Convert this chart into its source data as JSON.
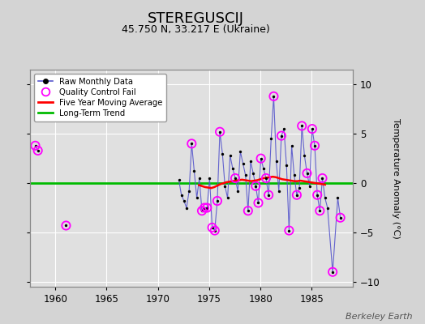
{
  "title": "STEREGUSCIJ",
  "subtitle": "45.750 N, 33.217 E (Ukraine)",
  "ylabel": "Temperature Anomaly (°C)",
  "watermark": "Berkeley Earth",
  "xlim": [
    1957.5,
    1989.0
  ],
  "ylim": [
    -10.5,
    11.5
  ],
  "yticks": [
    -10,
    -5,
    0,
    5,
    10
  ],
  "xticks": [
    1960,
    1965,
    1970,
    1975,
    1980,
    1985
  ],
  "bg_color": "#d4d4d4",
  "plot_bg_color": "#e0e0e0",
  "grid_color": "#ffffff",
  "raw_line_color": "#5555cc",
  "raw_dot_color": "#000000",
  "qc_fail_color": "#ff00ff",
  "moving_avg_color": "#ff0000",
  "trend_color": "#00bb00",
  "raw_monthly_data": [
    [
      1958.04,
      3.8
    ],
    [
      1958.29,
      3.3
    ],
    [
      1961.04,
      -4.3
    ],
    [
      1972.04,
      0.3
    ],
    [
      1972.29,
      -1.2
    ],
    [
      1972.54,
      -1.8
    ],
    [
      1972.79,
      -2.5
    ],
    [
      1973.04,
      -0.8
    ],
    [
      1973.29,
      4.0
    ],
    [
      1973.54,
      1.2
    ],
    [
      1973.79,
      -1.5
    ],
    [
      1974.04,
      0.5
    ],
    [
      1974.29,
      -2.8
    ],
    [
      1974.54,
      -2.5
    ],
    [
      1974.79,
      -2.5
    ],
    [
      1975.04,
      0.5
    ],
    [
      1975.29,
      -4.5
    ],
    [
      1975.54,
      -4.8
    ],
    [
      1975.79,
      -1.8
    ],
    [
      1976.04,
      5.2
    ],
    [
      1976.29,
      3.0
    ],
    [
      1976.54,
      -0.3
    ],
    [
      1976.79,
      -1.5
    ],
    [
      1977.04,
      2.8
    ],
    [
      1977.29,
      1.5
    ],
    [
      1977.54,
      0.5
    ],
    [
      1977.79,
      -0.8
    ],
    [
      1978.04,
      3.2
    ],
    [
      1978.29,
      2.0
    ],
    [
      1978.54,
      0.8
    ],
    [
      1978.79,
      -2.8
    ],
    [
      1979.04,
      2.2
    ],
    [
      1979.29,
      1.0
    ],
    [
      1979.54,
      -0.3
    ],
    [
      1979.79,
      -2.0
    ],
    [
      1980.04,
      2.5
    ],
    [
      1980.29,
      1.5
    ],
    [
      1980.54,
      0.5
    ],
    [
      1980.79,
      -1.2
    ],
    [
      1981.04,
      4.5
    ],
    [
      1981.29,
      8.8
    ],
    [
      1981.54,
      2.2
    ],
    [
      1981.79,
      -0.8
    ],
    [
      1982.04,
      4.8
    ],
    [
      1982.29,
      5.5
    ],
    [
      1982.54,
      1.8
    ],
    [
      1982.79,
      -4.8
    ],
    [
      1983.04,
      3.8
    ],
    [
      1983.29,
      0.8
    ],
    [
      1983.54,
      -1.2
    ],
    [
      1983.79,
      -0.5
    ],
    [
      1984.04,
      5.8
    ],
    [
      1984.29,
      2.8
    ],
    [
      1984.54,
      1.0
    ],
    [
      1984.79,
      -0.3
    ],
    [
      1985.04,
      5.5
    ],
    [
      1985.29,
      3.8
    ],
    [
      1985.54,
      -1.2
    ],
    [
      1985.79,
      -2.8
    ],
    [
      1986.04,
      0.5
    ],
    [
      1986.29,
      -1.5
    ],
    [
      1986.54,
      -2.5
    ],
    [
      1987.04,
      -9.0
    ],
    [
      1987.54,
      -1.5
    ],
    [
      1987.79,
      -3.5
    ]
  ],
  "qc_fail_points": [
    [
      1958.04,
      3.8
    ],
    [
      1958.29,
      3.3
    ],
    [
      1961.04,
      -4.3
    ],
    [
      1973.29,
      4.0
    ],
    [
      1974.29,
      -2.8
    ],
    [
      1974.54,
      -2.5
    ],
    [
      1974.79,
      -2.5
    ],
    [
      1975.29,
      -4.5
    ],
    [
      1975.54,
      -4.8
    ],
    [
      1975.79,
      -1.8
    ],
    [
      1976.04,
      5.2
    ],
    [
      1977.54,
      0.5
    ],
    [
      1978.79,
      -2.8
    ],
    [
      1979.54,
      -0.3
    ],
    [
      1979.79,
      -2.0
    ],
    [
      1980.04,
      2.5
    ],
    [
      1980.54,
      0.5
    ],
    [
      1980.79,
      -1.2
    ],
    [
      1981.29,
      8.8
    ],
    [
      1982.04,
      4.8
    ],
    [
      1982.79,
      -4.8
    ],
    [
      1983.54,
      -1.2
    ],
    [
      1984.04,
      5.8
    ],
    [
      1984.54,
      1.0
    ],
    [
      1985.04,
      5.5
    ],
    [
      1985.29,
      3.8
    ],
    [
      1985.54,
      -1.2
    ],
    [
      1985.79,
      -2.8
    ],
    [
      1986.04,
      0.5
    ],
    [
      1987.04,
      -9.0
    ],
    [
      1987.79,
      -3.5
    ]
  ],
  "moving_avg": [
    [
      1974.0,
      -0.2
    ],
    [
      1974.3,
      -0.3
    ],
    [
      1974.6,
      -0.4
    ],
    [
      1974.9,
      -0.45
    ],
    [
      1975.2,
      -0.5
    ],
    [
      1975.5,
      -0.4
    ],
    [
      1975.8,
      -0.25
    ],
    [
      1976.1,
      -0.1
    ],
    [
      1976.4,
      0.0
    ],
    [
      1976.7,
      0.1
    ],
    [
      1977.0,
      0.15
    ],
    [
      1977.3,
      0.2
    ],
    [
      1977.6,
      0.25
    ],
    [
      1977.9,
      0.3
    ],
    [
      1978.2,
      0.35
    ],
    [
      1978.5,
      0.3
    ],
    [
      1978.8,
      0.25
    ],
    [
      1979.1,
      0.2
    ],
    [
      1979.4,
      0.25
    ],
    [
      1979.7,
      0.3
    ],
    [
      1980.0,
      0.4
    ],
    [
      1980.3,
      0.5
    ],
    [
      1980.6,
      0.55
    ],
    [
      1980.9,
      0.6
    ],
    [
      1981.2,
      0.65
    ],
    [
      1981.5,
      0.6
    ],
    [
      1981.8,
      0.5
    ],
    [
      1982.1,
      0.4
    ],
    [
      1982.4,
      0.35
    ],
    [
      1982.7,
      0.3
    ],
    [
      1983.0,
      0.25
    ],
    [
      1983.3,
      0.2
    ],
    [
      1983.6,
      0.2
    ],
    [
      1983.9,
      0.25
    ],
    [
      1984.2,
      0.2
    ],
    [
      1984.5,
      0.15
    ],
    [
      1984.8,
      0.1
    ],
    [
      1985.1,
      0.05
    ],
    [
      1985.4,
      0.0
    ],
    [
      1985.7,
      -0.05
    ],
    [
      1986.0,
      -0.1
    ],
    [
      1986.3,
      -0.15
    ]
  ]
}
